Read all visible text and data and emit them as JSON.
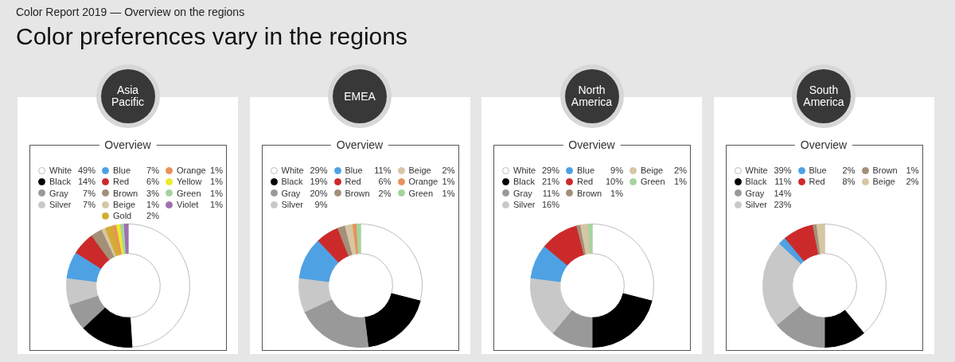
{
  "chart_data": [
    {
      "type": "other",
      "title": "Color preferences vary in the regions",
      "subtitle": "Color Report 2019 — Overview on the regions"
    },
    {
      "type": "donut",
      "title": "Asia Pacific",
      "subtitle": "Overview",
      "legend": "top",
      "categories": [
        "White",
        "Black",
        "Gray",
        "Silver",
        "Blue",
        "Red",
        "Brown",
        "Beige",
        "Gold",
        "Orange",
        "Yellow",
        "Green",
        "Violet"
      ],
      "values": [
        49,
        14,
        7,
        7,
        7,
        6,
        3,
        1,
        2,
        1,
        1,
        1,
        1
      ],
      "value_labels": [
        "49%",
        "14%",
        "7%",
        "7%",
        "7%",
        "6%",
        "3%",
        "1%",
        "2%",
        "1%",
        "1%",
        "1%",
        "1%"
      ],
      "colors": [
        "#ffffff",
        "#000000",
        "#999999",
        "#c8c8c8",
        "#4ea1e3",
        "#cc2a2a",
        "#a48f78",
        "#d6c6a4",
        "#d4ac34",
        "#e8935a",
        "#ecec2c",
        "#a6d4a0",
        "#a070b0"
      ]
    },
    {
      "type": "donut",
      "title": "EMEA",
      "subtitle": "Overview",
      "legend": "top",
      "categories": [
        "White",
        "Black",
        "Gray",
        "Silver",
        "Blue",
        "Red",
        "Brown",
        "Beige",
        "Orange",
        "Green"
      ],
      "values": [
        29,
        19,
        20,
        9,
        11,
        6,
        2,
        2,
        1,
        1
      ],
      "value_labels": [
        "29%",
        "19%",
        "20%",
        "9%",
        "11%",
        "6%",
        "2%",
        "2%",
        "1%",
        "1%"
      ],
      "colors": [
        "#ffffff",
        "#000000",
        "#999999",
        "#c8c8c8",
        "#4ea1e3",
        "#cc2a2a",
        "#a48f78",
        "#d6c6a4",
        "#e8935a",
        "#a6d4a0"
      ]
    },
    {
      "type": "donut",
      "title": "North America",
      "subtitle": "Overview",
      "legend": "top",
      "categories": [
        "White",
        "Black",
        "Gray",
        "Silver",
        "Blue",
        "Red",
        "Brown",
        "Beige",
        "Green"
      ],
      "values": [
        29,
        21,
        11,
        16,
        9,
        10,
        1,
        2,
        1
      ],
      "value_labels": [
        "29%",
        "21%",
        "11%",
        "16%",
        "9%",
        "10%",
        "1%",
        "2%",
        "1%"
      ],
      "colors": [
        "#ffffff",
        "#000000",
        "#999999",
        "#c8c8c8",
        "#4ea1e3",
        "#cc2a2a",
        "#a48f78",
        "#d6c6a4",
        "#a6d4a0"
      ]
    },
    {
      "type": "donut",
      "title": "South America",
      "subtitle": "Overview",
      "legend": "top",
      "categories": [
        "White",
        "Black",
        "Gray",
        "Silver",
        "Blue",
        "Red",
        "Brown",
        "Beige"
      ],
      "values": [
        39,
        11,
        14,
        23,
        2,
        8,
        1,
        2
      ],
      "value_labels": [
        "39%",
        "11%",
        "14%",
        "23%",
        "2%",
        "8%",
        "1%",
        "2%"
      ],
      "colors": [
        "#ffffff",
        "#000000",
        "#999999",
        "#c8c8c8",
        "#4ea1e3",
        "#cc2a2a",
        "#a48f78",
        "#d6c6a4"
      ]
    }
  ]
}
